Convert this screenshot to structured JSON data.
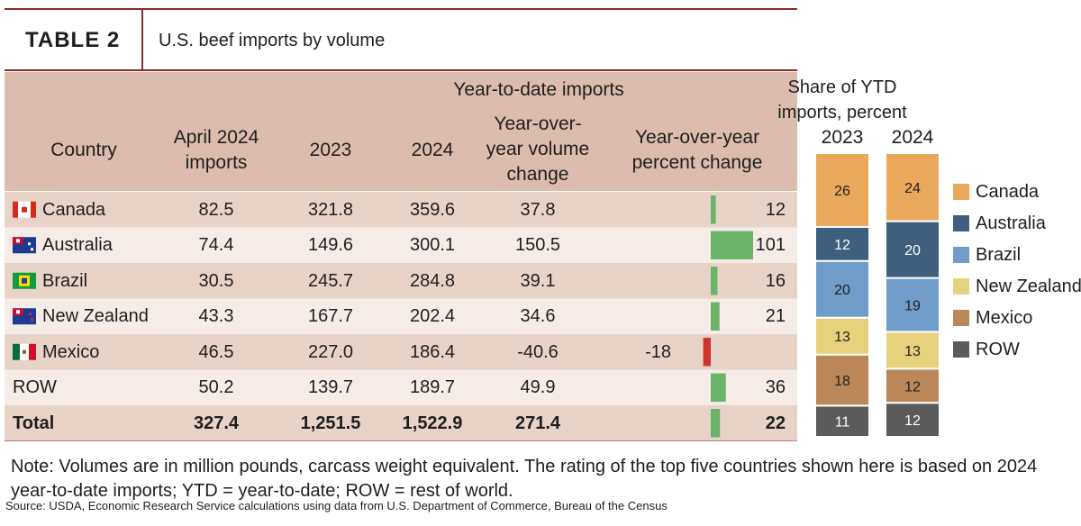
{
  "header": {
    "label": "TABLE 2",
    "title": "U.S. beef imports by volume"
  },
  "table": {
    "group_header": "Year-to-date imports",
    "columns": [
      "Country",
      "April 2024 imports",
      "2023",
      "2024",
      "Year-over-year volume change",
      "Year-over-year percent change"
    ],
    "rows": [
      [
        "Canada",
        "82.5",
        "321.8",
        "359.6",
        "37.8",
        12
      ],
      [
        "Australia",
        "74.4",
        "149.6",
        "300.1",
        "150.5",
        101
      ],
      [
        "Brazil",
        "30.5",
        "245.7",
        "284.8",
        "39.1",
        16
      ],
      [
        "New Zealand",
        "43.3",
        "167.7",
        "202.4",
        "34.6",
        21
      ],
      [
        "Mexico",
        "46.5",
        "227.0",
        "186.4",
        "-40.6",
        -18
      ],
      [
        "ROW",
        "50.2",
        "139.7",
        "189.7",
        "49.9",
        36
      ]
    ],
    "total": [
      "Total",
      "327.4",
      "1,251.5",
      "1,522.9",
      "271.4",
      22
    ]
  },
  "share": {
    "title": "Share of YTD imports, percent",
    "years": [
      "2023",
      "2024"
    ],
    "series": [
      {
        "name": "Canada",
        "color": "#e9a85c",
        "values": [
          26,
          24
        ]
      },
      {
        "name": "Australia",
        "color": "#3e5f7e",
        "values": [
          12,
          20
        ]
      },
      {
        "name": "Brazil",
        "color": "#6f9cc8",
        "values": [
          20,
          19
        ]
      },
      {
        "name": "New Zealand",
        "color": "#e7d17d",
        "values": [
          13,
          13
        ]
      },
      {
        "name": "Mexico",
        "color": "#bb8758",
        "values": [
          18,
          12
        ]
      },
      {
        "name": "ROW",
        "color": "#5b5b5b",
        "values": [
          11,
          12
        ]
      }
    ]
  },
  "note": "Note: Volumes are in million pounds, carcass weight equivalent. The rating of the top five countries shown here is based on 2024 year-to-date imports; YTD = year-to-date; ROW = rest of world.",
  "source": "Source: USDA, Economic Research Service calculations using data from U.S. Department of Commerce, Bureau of the Census"
}
